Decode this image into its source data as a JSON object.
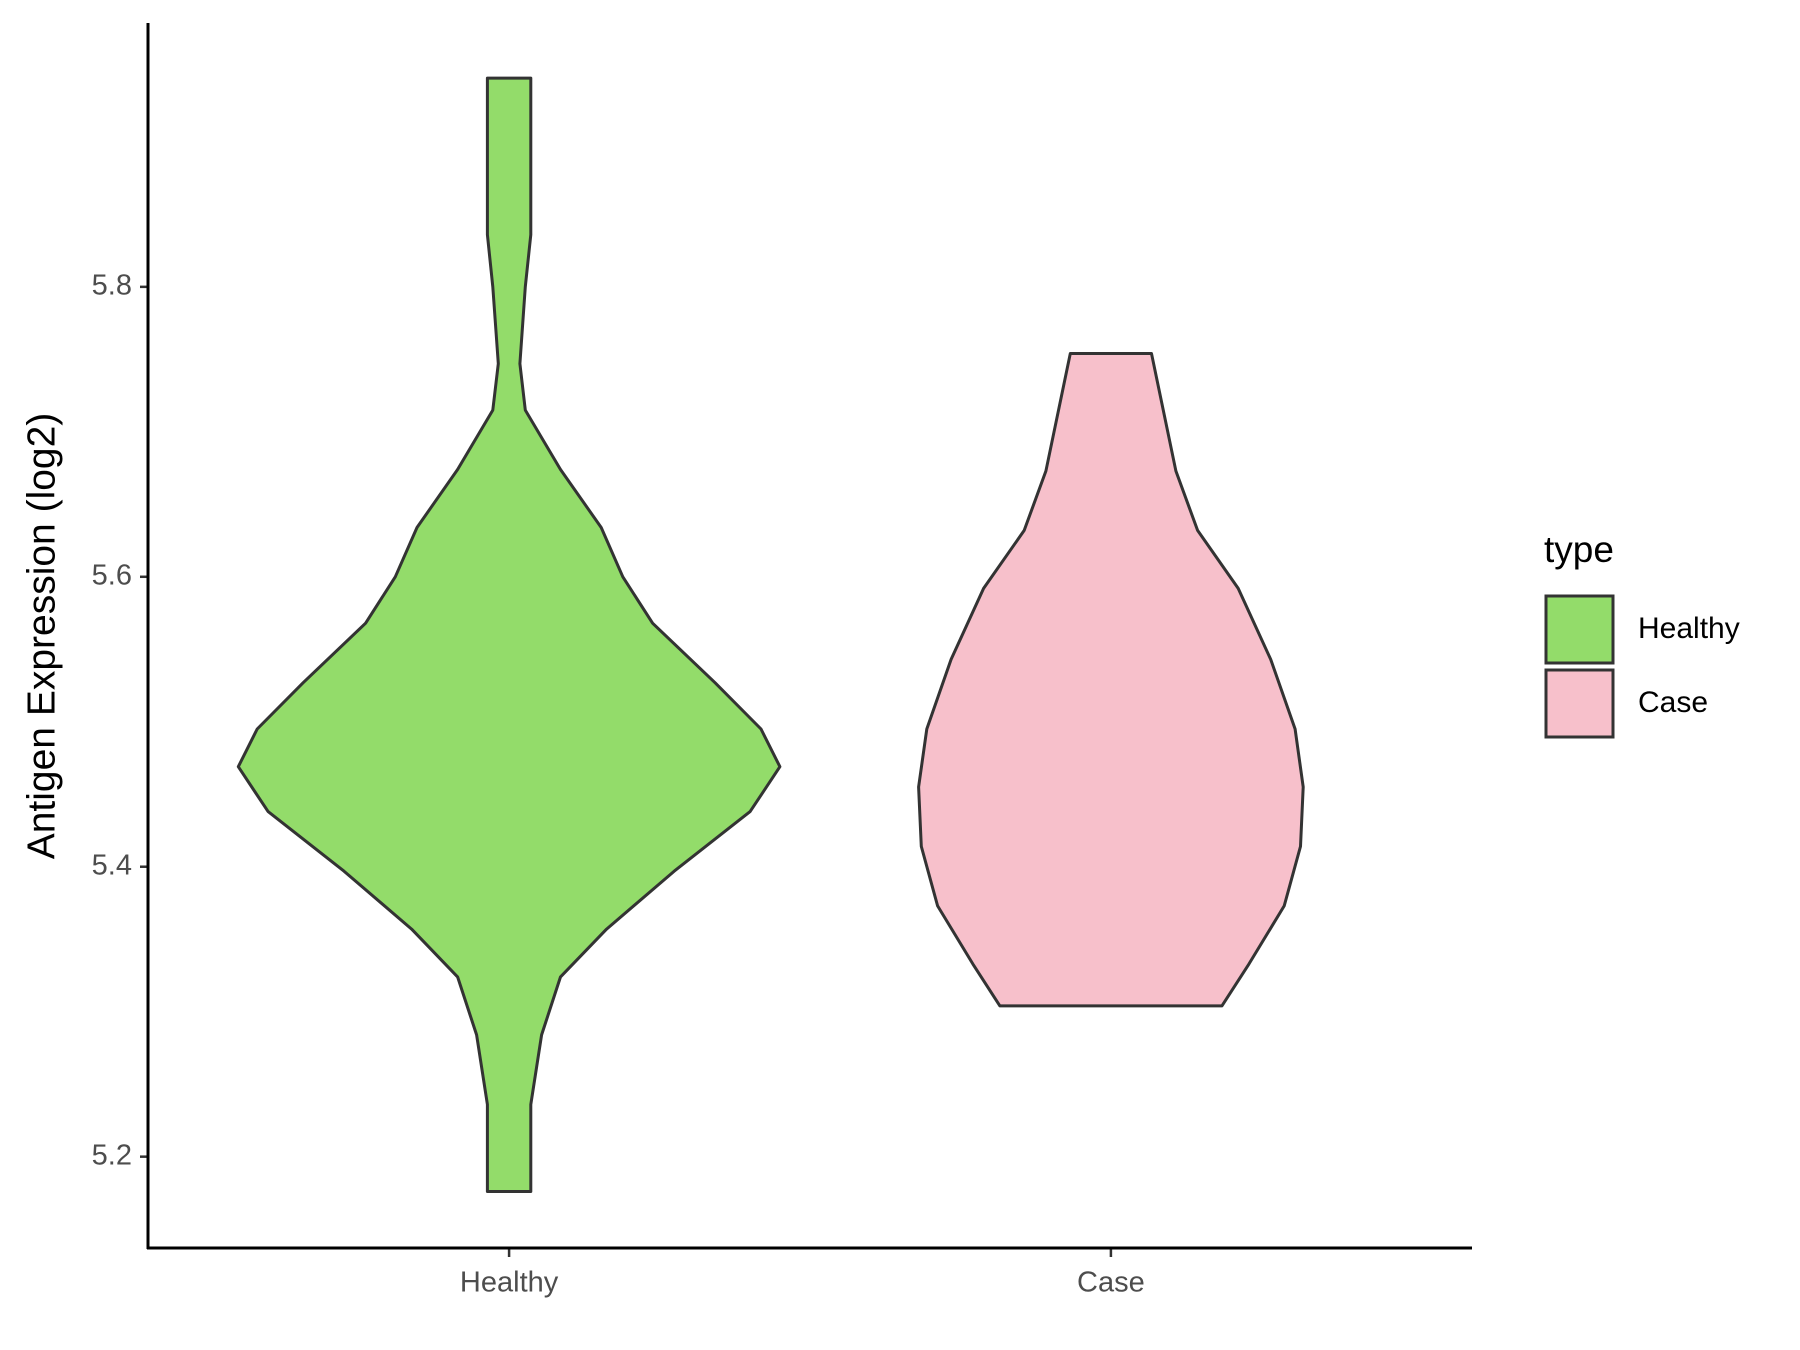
{
  "chart_data": {
    "type": "violin",
    "y_label": "Antigen Expression (log2)",
    "categories": [
      "Healthy",
      "Case"
    ],
    "series": [
      {
        "name": "Healthy",
        "color": "#93dc6a",
        "y": [
          5.944,
          5.885,
          5.836,
          5.8,
          5.747,
          5.715,
          5.674,
          5.634,
          5.6,
          5.568,
          5.527,
          5.495,
          5.469,
          5.438,
          5.397,
          5.357,
          5.324,
          5.284,
          5.236,
          5.176
        ],
        "density": [
          0.08,
          0.08,
          0.08,
          0.06,
          0.04,
          0.06,
          0.19,
          0.34,
          0.42,
          0.53,
          0.76,
          0.93,
          1,
          0.89,
          0.61,
          0.36,
          0.19,
          0.12,
          0.08,
          0.08
        ]
      },
      {
        "name": "Case",
        "color": "#f7c0cb",
        "y": [
          5.754,
          5.673,
          5.632,
          5.592,
          5.543,
          5.495,
          5.455,
          5.414,
          5.373,
          5.333,
          5.304
        ],
        "density": [
          0.15,
          0.24,
          0.32,
          0.47,
          0.59,
          0.68,
          0.71,
          0.7,
          0.64,
          0.51,
          0.41
        ]
      }
    ],
    "ylim": [
      5.137,
      5.982
    ],
    "yticks": [
      5.2,
      5.4,
      5.6,
      5.8
    ],
    "legend_title": "type",
    "legend_position": "right"
  }
}
